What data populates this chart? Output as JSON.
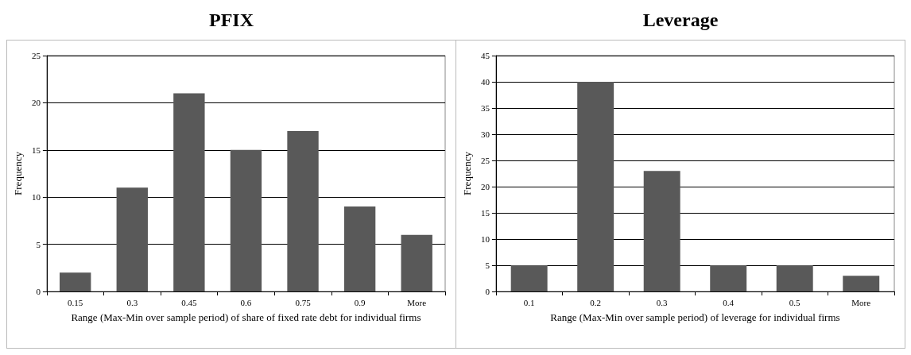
{
  "chart_data": [
    {
      "type": "bar",
      "title": "PFIX",
      "xlabel": "Range (Max-Min over sample period) of share of fixed rate debt for individual firms",
      "ylabel": "Frequency",
      "categories": [
        "0.15",
        "0.3",
        "0.45",
        "0.6",
        "0.75",
        "0.9",
        "More"
      ],
      "values": [
        2,
        11,
        21,
        15,
        17,
        9,
        6
      ],
      "color": "#595959",
      "ylim": [
        0,
        25
      ],
      "yticks": [
        0,
        5,
        10,
        15,
        20,
        25
      ],
      "grid": "y"
    },
    {
      "type": "bar",
      "title": "Leverage",
      "xlabel": "Range (Max-Min over sample period) of leverage for individual firms",
      "ylabel": "Frequency",
      "categories": [
        "0.1",
        "0.2",
        "0.3",
        "0.4",
        "0.5",
        "More"
      ],
      "values": [
        5,
        40,
        23,
        5,
        5,
        3
      ],
      "color": "#595959",
      "ylim": [
        0,
        45
      ],
      "yticks": [
        0,
        5,
        10,
        15,
        20,
        25,
        30,
        35,
        40,
        45
      ],
      "grid": "y"
    }
  ]
}
